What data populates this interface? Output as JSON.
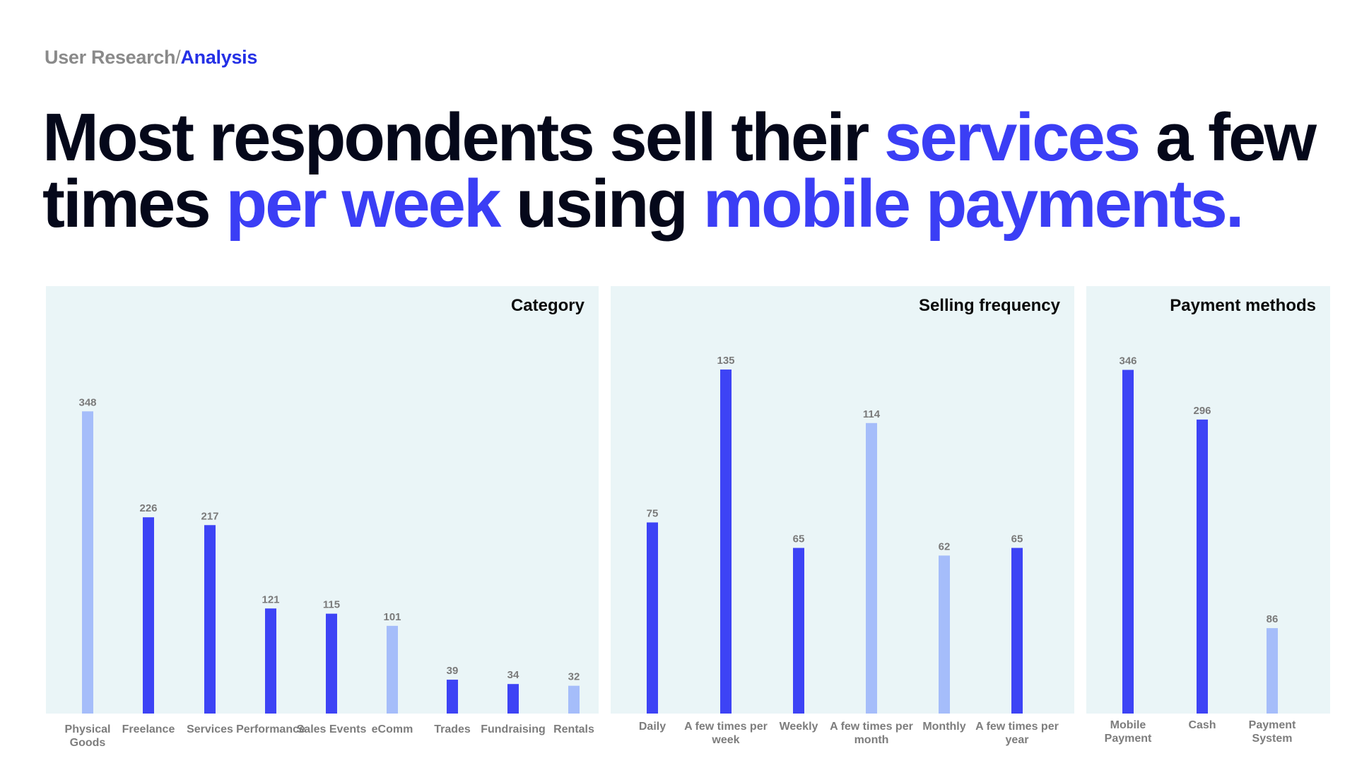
{
  "breadcrumb": {
    "parent": "User Research",
    "separator": "/",
    "current": "Analysis"
  },
  "headline": {
    "p1": "Most respondents sell their ",
    "h1": "services",
    "p2": " a few times ",
    "h2": "per week",
    "p3": " using ",
    "h3": "mobile payments."
  },
  "colors": {
    "primary_bar": "#3d43f5",
    "secondary_bar": "#a5bdfa",
    "panel_bg": "#eaf5f7",
    "value_label": "#7a7a7a",
    "accent_text": "#3b3ef5"
  },
  "chart_data": [
    {
      "type": "bar",
      "title": "Category",
      "categories": [
        "Physical Goods",
        "Freelance",
        "Services",
        "Performance",
        "Sales Events",
        "eComm",
        "Trades",
        "Fundraising",
        "Rentals"
      ],
      "values": [
        348,
        226,
        217,
        121,
        115,
        101,
        39,
        34,
        32
      ],
      "highlight": [
        false,
        true,
        true,
        true,
        true,
        false,
        true,
        true,
        false
      ],
      "ylim": [
        0,
        480
      ],
      "grid": false
    },
    {
      "type": "bar",
      "title": "Selling frequency",
      "categories": [
        "Daily",
        "A few times per week",
        "Weekly",
        "A few times per month",
        "Monthly",
        "A few times per year"
      ],
      "values": [
        75,
        135,
        65,
        114,
        62,
        65
      ],
      "highlight": [
        true,
        true,
        true,
        false,
        false,
        true
      ],
      "ylim": [
        0,
        145
      ],
      "grid": false
    },
    {
      "type": "bar",
      "title": "Payment methods",
      "categories": [
        "Mobile Payment",
        "Cash",
        "Payment System"
      ],
      "values": [
        346,
        296,
        86
      ],
      "highlight": [
        true,
        true,
        false
      ],
      "ylim": [
        0,
        372
      ],
      "grid": false
    }
  ]
}
